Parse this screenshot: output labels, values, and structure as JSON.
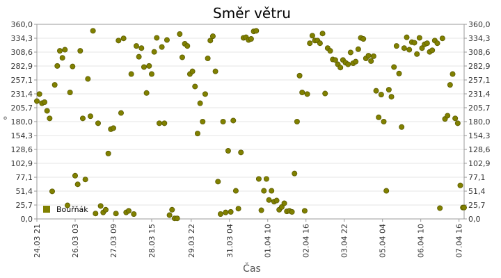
{
  "chart_data": {
    "type": "scatter",
    "title": "Směr větru",
    "xlabel": "Čas",
    "ylabel": "°",
    "ylim": [
      0,
      360
    ],
    "xlim": [
      "2024-03-24T21:00",
      "2024-04-07T20:00"
    ],
    "y_ticks": [
      "0,0",
      "25,7",
      "51,4",
      "77,1",
      "102,9",
      "128,6",
      "154,3",
      "180,0",
      "205,7",
      "231,4",
      "257,1",
      "282,9",
      "308,6",
      "334,3",
      "360,0"
    ],
    "y_ticks_values": [
      0,
      25.7,
      51.4,
      77.1,
      102.9,
      128.6,
      154.3,
      180,
      205.7,
      231.4,
      257.1,
      282.9,
      308.6,
      334.3,
      360
    ],
    "x_ticks": [
      "24.03 21",
      "26.03 03",
      "27.03 09",
      "28.03 15",
      "29.03 22",
      "31.03 04",
      "01.04 10",
      "02.04 16",
      "03.04 22",
      "05.04 04",
      "06.04 10",
      "07.04 16"
    ],
    "x_ticks_values": [
      "2024-03-24T21:00",
      "2024-03-26T03:00",
      "2024-03-27T09:00",
      "2024-03-28T15:00",
      "2024-03-29T22:00",
      "2024-03-31T04:00",
      "2024-04-01T10:00",
      "2024-04-02T16:00",
      "2024-04-03T22:00",
      "2024-04-05T04:00",
      "2024-04-06T10:00",
      "2024-04-07T16:00"
    ],
    "grid": true,
    "legend_position": "bottom-left",
    "series": [
      {
        "name": "Bouřňák",
        "color": "#808000",
        "points": [
          [
            "2024-03-24T21:00",
            218
          ],
          [
            "2024-03-24T23:00",
            231
          ],
          [
            "2024-03-25T01:00",
            214
          ],
          [
            "2024-03-25T03:00",
            216
          ],
          [
            "2024-03-25T05:00",
            200
          ],
          [
            "2024-03-25T07:00",
            186
          ],
          [
            "2024-03-25T09:00",
            51
          ],
          [
            "2024-03-25T11:00",
            248
          ],
          [
            "2024-03-25T13:00",
            283
          ],
          [
            "2024-03-25T15:00",
            311
          ],
          [
            "2024-03-25T17:00",
            298
          ],
          [
            "2024-03-25T19:00",
            313
          ],
          [
            "2024-03-25T21:00",
            25
          ],
          [
            "2024-03-25T23:00",
            234
          ],
          [
            "2024-03-26T01:00",
            282
          ],
          [
            "2024-03-26T03:00",
            80
          ],
          [
            "2024-03-26T05:00",
            64
          ],
          [
            "2024-03-26T07:00",
            311
          ],
          [
            "2024-03-26T09:00",
            186
          ],
          [
            "2024-03-26T11:00",
            73
          ],
          [
            "2024-03-26T13:00",
            259
          ],
          [
            "2024-03-26T15:00",
            190
          ],
          [
            "2024-03-26T17:00",
            348
          ],
          [
            "2024-03-26T19:00",
            10
          ],
          [
            "2024-03-26T21:00",
            177
          ],
          [
            "2024-03-26T23:00",
            24
          ],
          [
            "2024-03-27T01:00",
            12
          ],
          [
            "2024-03-27T03:00",
            17
          ],
          [
            "2024-03-27T05:00",
            121
          ],
          [
            "2024-03-27T07:00",
            166
          ],
          [
            "2024-03-27T09:00",
            168
          ],
          [
            "2024-03-27T11:00",
            10
          ],
          [
            "2024-03-27T13:00",
            330
          ],
          [
            "2024-03-27T15:00",
            196
          ],
          [
            "2024-03-27T17:00",
            334
          ],
          [
            "2024-03-27T19:00",
            12
          ],
          [
            "2024-03-27T21:00",
            15
          ],
          [
            "2024-03-27T23:00",
            268
          ],
          [
            "2024-03-28T01:00",
            9
          ],
          [
            "2024-03-28T03:00",
            320
          ],
          [
            "2024-03-28T05:00",
            300
          ],
          [
            "2024-03-28T07:00",
            316
          ],
          [
            "2024-03-28T09:00",
            281
          ],
          [
            "2024-03-28T11:00",
            233
          ],
          [
            "2024-03-28T13:00",
            283
          ],
          [
            "2024-03-28T15:00",
            268
          ],
          [
            "2024-03-28T17:00",
            309
          ],
          [
            "2024-03-28T19:00",
            335
          ],
          [
            "2024-03-28T21:00",
            177
          ],
          [
            "2024-03-28T23:00",
            318
          ],
          [
            "2024-03-29T01:00",
            177
          ],
          [
            "2024-03-29T03:00",
            331
          ],
          [
            "2024-03-29T05:00",
            7
          ],
          [
            "2024-03-29T07:00",
            17
          ],
          [
            "2024-03-29T09:00",
            1
          ],
          [
            "2024-03-29T11:00",
            1
          ],
          [
            "2024-03-29T13:00",
            342
          ],
          [
            "2024-03-29T15:00",
            299
          ],
          [
            "2024-03-29T17:00",
            324
          ],
          [
            "2024-03-29T19:00",
            320
          ],
          [
            "2024-03-29T21:00",
            268
          ],
          [
            "2024-03-29T23:00",
            273
          ],
          [
            "2024-03-30T01:00",
            245
          ],
          [
            "2024-03-30T03:00",
            158
          ],
          [
            "2024-03-30T05:00",
            214
          ],
          [
            "2024-03-30T07:00",
            180
          ],
          [
            "2024-03-30T09:00",
            231
          ],
          [
            "2024-03-30T11:00",
            297
          ],
          [
            "2024-03-30T13:00",
            330
          ],
          [
            "2024-03-30T15:00",
            338
          ],
          [
            "2024-03-30T17:00",
            273
          ],
          [
            "2024-03-30T19:00",
            69
          ],
          [
            "2024-03-30T21:00",
            9
          ],
          [
            "2024-03-30T23:00",
            180
          ],
          [
            "2024-03-31T01:00",
            12
          ],
          [
            "2024-03-31T03:00",
            126
          ],
          [
            "2024-03-31T05:00",
            13
          ],
          [
            "2024-03-31T07:00",
            182
          ],
          [
            "2024-03-31T09:00",
            52
          ],
          [
            "2024-03-31T11:00",
            19
          ],
          [
            "2024-03-31T13:00",
            123
          ],
          [
            "2024-03-31T15:00",
            335
          ],
          [
            "2024-03-31T17:00",
            336
          ],
          [
            "2024-03-31T19:00",
            331
          ],
          [
            "2024-03-31T21:00",
            333
          ],
          [
            "2024-03-31T23:00",
            347
          ],
          [
            "2024-04-01T01:00",
            348
          ],
          [
            "2024-04-01T03:00",
            74
          ],
          [
            "2024-04-01T05:00",
            16
          ],
          [
            "2024-04-01T07:00",
            52
          ],
          [
            "2024-04-01T09:00",
            74
          ],
          [
            "2024-04-01T11:00",
            35
          ],
          [
            "2024-04-01T13:00",
            52
          ],
          [
            "2024-04-01T15:00",
            32
          ],
          [
            "2024-04-01T17:00",
            34
          ],
          [
            "2024-04-01T19:00",
            17
          ],
          [
            "2024-04-01T21:00",
            22
          ],
          [
            "2024-04-01T23:00",
            29
          ],
          [
            "2024-04-02T01:00",
            14
          ],
          [
            "2024-04-02T03:00",
            15
          ],
          [
            "2024-04-02T05:00",
            13
          ],
          [
            "2024-04-02T07:00",
            84
          ],
          [
            "2024-04-02T09:00",
            180
          ],
          [
            "2024-04-02T11:00",
            265
          ],
          [
            "2024-04-02T13:00",
            234
          ],
          [
            "2024-04-02T15:00",
            15
          ],
          [
            "2024-04-02T17:00",
            231
          ],
          [
            "2024-04-02T19:00",
            325
          ],
          [
            "2024-04-02T21:00",
            339
          ],
          [
            "2024-04-02T23:00",
            330
          ],
          [
            "2024-04-03T01:00",
            330
          ],
          [
            "2024-04-03T03:00",
            325
          ],
          [
            "2024-04-03T05:00",
            343
          ],
          [
            "2024-04-03T07:00",
            232
          ],
          [
            "2024-04-03T09:00",
            316
          ],
          [
            "2024-04-03T11:00",
            311
          ],
          [
            "2024-04-03T13:00",
            295
          ],
          [
            "2024-04-03T15:00",
            294
          ],
          [
            "2024-04-03T17:00",
            286
          ],
          [
            "2024-04-03T19:00",
            280
          ],
          [
            "2024-04-03T21:00",
            294
          ],
          [
            "2024-04-03T23:00",
            289
          ],
          [
            "2024-04-04T01:00",
            286
          ],
          [
            "2024-04-04T03:00",
            308
          ],
          [
            "2024-04-04T05:00",
            288
          ],
          [
            "2024-04-04T07:00",
            291
          ],
          [
            "2024-04-04T09:00",
            314
          ],
          [
            "2024-04-04T11:00",
            335
          ],
          [
            "2024-04-04T13:00",
            333
          ],
          [
            "2024-04-04T15:00",
            297
          ],
          [
            "2024-04-04T17:00",
            302
          ],
          [
            "2024-04-04T19:00",
            292
          ],
          [
            "2024-04-04T21:00",
            301
          ],
          [
            "2024-04-04T23:00",
            237
          ],
          [
            "2024-04-05T01:00",
            188
          ],
          [
            "2024-04-05T03:00",
            230
          ],
          [
            "2024-04-05T05:00",
            180
          ],
          [
            "2024-04-05T07:00",
            52
          ],
          [
            "2024-04-05T09:00",
            239
          ],
          [
            "2024-04-05T11:00",
            226
          ],
          [
            "2024-04-05T13:00",
            281
          ],
          [
            "2024-04-05T15:00",
            320
          ],
          [
            "2024-04-05T17:00",
            269
          ],
          [
            "2024-04-05T19:00",
            170
          ],
          [
            "2024-04-05T21:00",
            316
          ],
          [
            "2024-04-05T23:00",
            336
          ],
          [
            "2024-04-06T01:00",
            313
          ],
          [
            "2024-04-06T03:00",
            327
          ],
          [
            "2024-04-06T05:00",
            326
          ],
          [
            "2024-04-06T07:00",
            305
          ],
          [
            "2024-04-06T09:00",
            335
          ],
          [
            "2024-04-06T11:00",
            316
          ],
          [
            "2024-04-06T13:00",
            323
          ],
          [
            "2024-04-06T15:00",
            325
          ],
          [
            "2024-04-06T17:00",
            309
          ],
          [
            "2024-04-06T19:00",
            312
          ],
          [
            "2024-04-06T21:00",
            330
          ],
          [
            "2024-04-06T23:00",
            325
          ],
          [
            "2024-04-07T01:00",
            20
          ],
          [
            "2024-04-07T03:00",
            334
          ],
          [
            "2024-04-07T05:00",
            185
          ],
          [
            "2024-04-07T07:00",
            191
          ],
          [
            "2024-04-07T09:00",
            248
          ],
          [
            "2024-04-07T11:00",
            268
          ],
          [
            "2024-04-07T13:00",
            186
          ],
          [
            "2024-04-07T15:00",
            177
          ],
          [
            "2024-04-07T17:00",
            62
          ],
          [
            "2024-04-07T19:00",
            21
          ],
          [
            "2024-04-07T20:00",
            21
          ]
        ]
      }
    ]
  }
}
